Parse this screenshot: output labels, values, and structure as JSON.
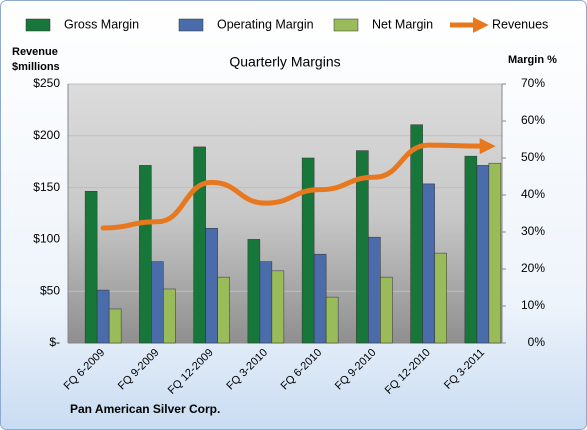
{
  "chart_data": {
    "type": "bar-line",
    "title": "Quarterly Margins",
    "y_label": [
      "Revenue",
      "$millions"
    ],
    "y2_label": "Margin %",
    "source": "Pan American Silver Corp.",
    "categories": [
      "FQ 6-2009",
      "FQ 9-2009",
      "FQ 12-2009",
      "FQ 3-2010",
      "FQ 6-2010",
      "FQ 9-2010",
      "FQ 12-2010",
      "FQ 3-2011"
    ],
    "series": [
      {
        "name": "Gross Margin",
        "color": "#17773a",
        "type": "bar",
        "axis": "y2",
        "values": [
          41,
          48,
          53,
          28,
          50,
          52,
          59,
          50.5
        ]
      },
      {
        "name": "Operating Margin",
        "color": "#4a6cab",
        "type": "bar",
        "axis": "y2",
        "values": [
          14.3,
          22,
          31,
          22,
          24,
          28.6,
          43,
          48
        ]
      },
      {
        "name": "Net Margin",
        "color": "#9abb59",
        "type": "bar",
        "axis": "y2",
        "values": [
          9.2,
          14.6,
          17.8,
          19.5,
          12.4,
          17.8,
          24.3,
          48.6
        ]
      },
      {
        "name": "Revenues",
        "color": "#e8781e",
        "type": "line",
        "axis": "y",
        "values": [
          111,
          117,
          155,
          135,
          148,
          160,
          191,
          190
        ]
      }
    ],
    "ylim": [
      0,
      250
    ],
    "yticks": [
      {
        "value": 0,
        "label": "$-"
      },
      {
        "value": 50,
        "label": "$50"
      },
      {
        "value": 100,
        "label": "$100"
      },
      {
        "value": 150,
        "label": "$150"
      },
      {
        "value": 200,
        "label": "$200"
      },
      {
        "value": 250,
        "label": "$250"
      }
    ],
    "y2lim": [
      0,
      70
    ],
    "y2ticks": [
      {
        "value": 0,
        "label": "0%"
      },
      {
        "value": 10,
        "label": "10%"
      },
      {
        "value": 20,
        "label": "20%"
      },
      {
        "value": 30,
        "label": "30%"
      },
      {
        "value": 40,
        "label": "40%"
      },
      {
        "value": 50,
        "label": "50%"
      },
      {
        "value": 60,
        "label": "60%"
      },
      {
        "value": 70,
        "label": "70%"
      }
    ],
    "grid": true,
    "legend": "top"
  }
}
